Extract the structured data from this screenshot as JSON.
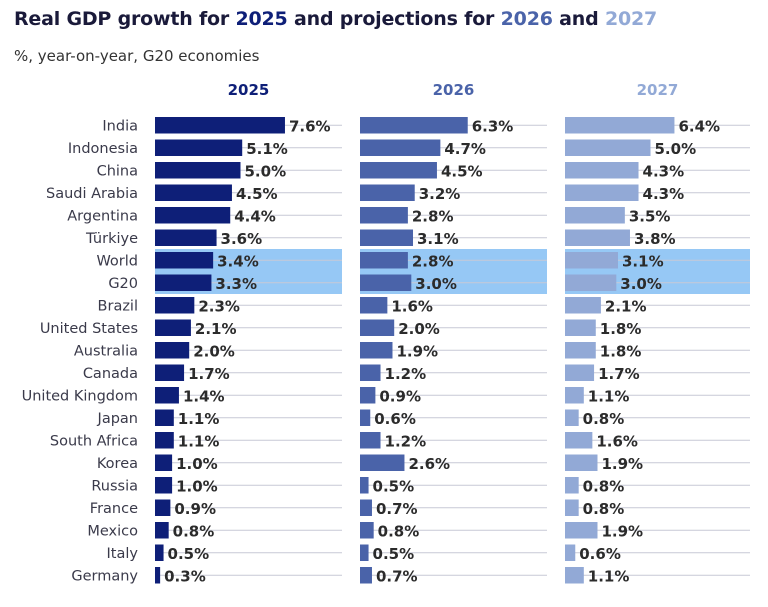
{
  "title": {
    "prefix": "Real GDP growth for ",
    "y1": "2025",
    "mid": " and projections for ",
    "y2": "2026",
    "and": " and ",
    "y3": "2027"
  },
  "subtitle": "%, year-on-year, G20 economies",
  "colors": {
    "2025": "#0e1f78",
    "2026": "#4a63a9",
    "2027": "#92a9d6",
    "highlight": "#96c8f5",
    "grid": "#c7c9d6",
    "text": "#2b2b2b"
  },
  "chart_data": {
    "type": "bar",
    "orientation": "horizontal",
    "categories": [
      "India",
      "Indonesia",
      "China",
      "Saudi Arabia",
      "Argentina",
      "Türkiye",
      "World",
      "G20",
      "Brazil",
      "United States",
      "Australia",
      "Canada",
      "United Kingdom",
      "Japan",
      "South Africa",
      "Korea",
      "Russia",
      "France",
      "Mexico",
      "Italy",
      "Germany"
    ],
    "highlighted": [
      "World",
      "G20"
    ],
    "series": [
      {
        "name": "2025",
        "values": [
          7.6,
          5.1,
          5.0,
          4.5,
          4.4,
          3.6,
          3.4,
          3.3,
          2.3,
          2.1,
          2.0,
          1.7,
          1.4,
          1.1,
          1.1,
          1.0,
          1.0,
          0.9,
          0.8,
          0.5,
          0.3
        ]
      },
      {
        "name": "2026",
        "values": [
          6.3,
          4.7,
          4.5,
          3.2,
          2.8,
          3.1,
          2.8,
          3.0,
          1.6,
          2.0,
          1.9,
          1.2,
          0.9,
          0.6,
          1.2,
          2.6,
          0.5,
          0.7,
          0.8,
          0.5,
          0.7
        ]
      },
      {
        "name": "2027",
        "values": [
          6.4,
          5.0,
          4.3,
          4.3,
          3.5,
          3.8,
          3.1,
          3.0,
          2.1,
          1.8,
          1.8,
          1.7,
          1.1,
          0.8,
          1.6,
          1.9,
          0.8,
          0.8,
          1.9,
          0.6,
          1.1
        ]
      }
    ],
    "value_suffix": "%",
    "grid": true
  }
}
